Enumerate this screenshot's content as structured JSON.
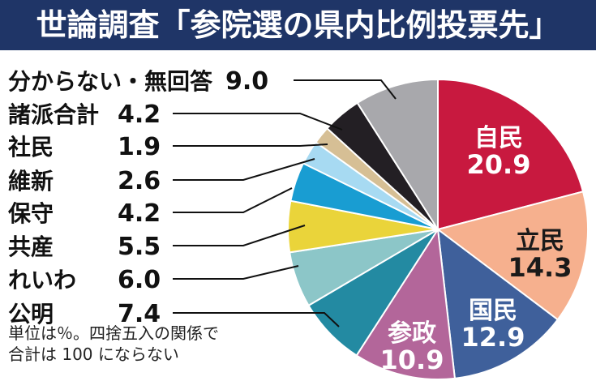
{
  "title": "世論調査「参院選の県内比例投票先」",
  "colors": {
    "title_bg": "#1f3567",
    "title_text": "#ffffff"
  },
  "notes": [
    "単位は％。四捨五入の関係で",
    "合計は 100 にならない"
  ],
  "chart_data": {
    "type": "pie",
    "title": "世論調査「参院選の県内比例投票先」",
    "unit": "%",
    "start": "12 o'clock, clockwise",
    "slices": [
      {
        "label": "自民",
        "value": 20.9,
        "value_text": "20.9",
        "color": "#c8193f",
        "label_color": "#ffffff",
        "placement": "inside"
      },
      {
        "label": "立民",
        "value": 14.3,
        "value_text": "14.3",
        "color": "#f6b08e",
        "label_color": "#1a1a1a",
        "placement": "inside"
      },
      {
        "label": "国民",
        "value": 12.9,
        "value_text": "12.9",
        "color": "#3f609b",
        "label_color": "#ffffff",
        "placement": "inside"
      },
      {
        "label": "参政",
        "value": 10.9,
        "value_text": "10.9",
        "color": "#b3669a",
        "label_color": "#ffffff",
        "placement": "inside"
      },
      {
        "label": "公明",
        "value": 7.4,
        "value_text": "7.4",
        "color": "#238aa2",
        "label_color": "#111111",
        "placement": "outside"
      },
      {
        "label": "れいわ",
        "value": 6.0,
        "value_text": "6.0",
        "color": "#8cc6c8",
        "label_color": "#111111",
        "placement": "outside"
      },
      {
        "label": "共産",
        "value": 5.5,
        "value_text": "5.5",
        "color": "#ead43a",
        "label_color": "#111111",
        "placement": "outside"
      },
      {
        "label": "保守",
        "value": 4.2,
        "value_text": "4.2",
        "color": "#199dd2",
        "label_color": "#111111",
        "placement": "outside"
      },
      {
        "label": "維新",
        "value": 2.6,
        "value_text": "2.6",
        "color": "#a7daf2",
        "label_color": "#111111",
        "placement": "outside"
      },
      {
        "label": "社民",
        "value": 1.9,
        "value_text": "1.9",
        "color": "#d6bf95",
        "label_color": "#111111",
        "placement": "outside"
      },
      {
        "label": "諸派合計",
        "value": 4.2,
        "value_text": "4.2",
        "color": "#231f24",
        "label_color": "#111111",
        "placement": "outside"
      },
      {
        "label": "分からない・無回答",
        "value": 9.0,
        "value_text": "9.0",
        "color": "#a8a8ac",
        "label_color": "#111111",
        "placement": "outside"
      }
    ]
  }
}
